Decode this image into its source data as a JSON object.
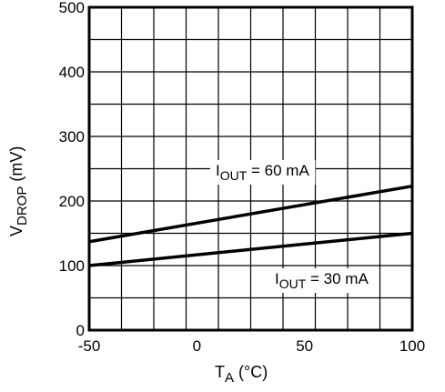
{
  "chart_data": {
    "type": "line",
    "xlabel": {
      "main": "T",
      "sub": "A",
      "unit": " (°C)"
    },
    "ylabel": {
      "main": "V",
      "sub": "DROP",
      "unit": " (mV)"
    },
    "xlim": [
      -50,
      100
    ],
    "ylim": [
      0,
      500
    ],
    "x_ticks": [
      "-50",
      "0",
      "50",
      "100"
    ],
    "y_ticks": [
      "0",
      "100",
      "200",
      "300",
      "400",
      "500"
    ],
    "grid": true,
    "series": [
      {
        "name": "IOUT = 60 mA",
        "label": {
          "main": "I",
          "sub": "OUT",
          "rest": " = 60 mA"
        },
        "x": [
          -50,
          100
        ],
        "y": [
          137,
          223
        ]
      },
      {
        "name": "IOUT = 30 mA",
        "label": {
          "main": "I",
          "sub": "OUT",
          "rest": " = 30 mA"
        },
        "x": [
          -50,
          100
        ],
        "y": [
          100,
          150
        ]
      }
    ],
    "colors": {
      "line": "#000000",
      "grid": "#000000",
      "background": "#ffffff"
    }
  }
}
